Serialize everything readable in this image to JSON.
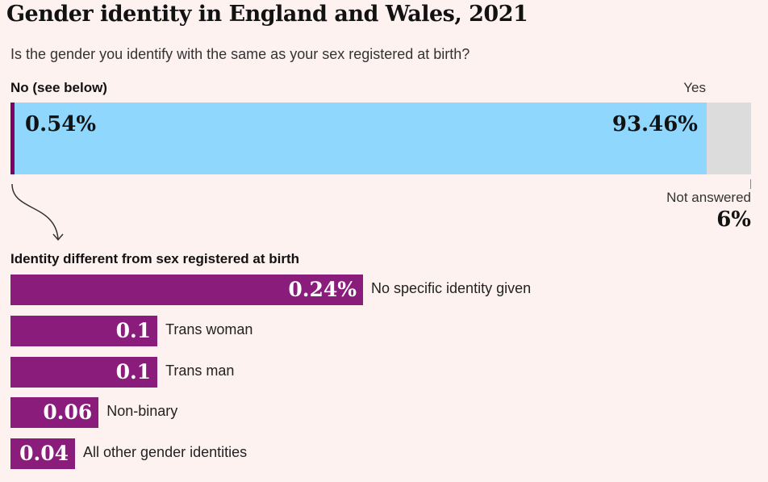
{
  "title": "Gender identity in England and Wales, 2021",
  "subtitle": "Is the gender you identify with the same as your sex registered at birth?",
  "chart_data": [
    {
      "type": "bar",
      "orientation": "horizontal-stacked",
      "categories": [
        "No (see below)",
        "Yes",
        "Not answered"
      ],
      "values": [
        0.54,
        93.46,
        6
      ],
      "labels": [
        "0.54%",
        "93.46%",
        "6%"
      ],
      "colors": [
        "#7d0068",
        "#90d7fe",
        "#dcdcdc"
      ],
      "xlim": [
        0,
        100
      ]
    },
    {
      "type": "bar",
      "orientation": "horizontal",
      "title": "Identity different from sex registered at birth",
      "categories": [
        "No specific identity given",
        "Trans woman",
        "Trans man",
        "Non-binary",
        "All other gender identities"
      ],
      "values": [
        0.24,
        0.1,
        0.1,
        0.06,
        0.04
      ],
      "labels": [
        "0.24%",
        "0.1",
        "0.1",
        "0.06",
        "0.04"
      ],
      "color": "#8a1c7c"
    }
  ]
}
